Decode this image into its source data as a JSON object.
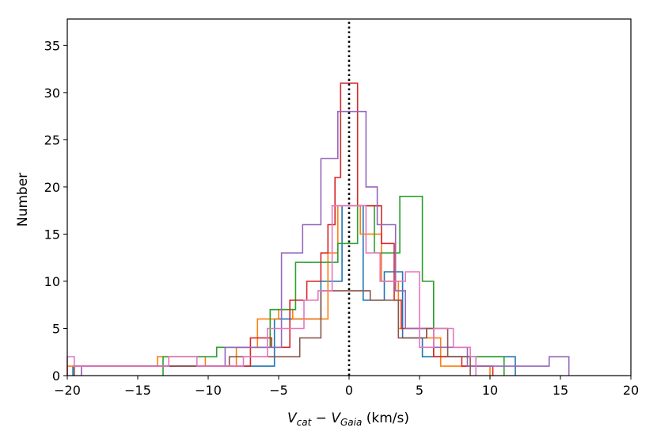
{
  "chart_data": {
    "type": "histogram",
    "title": "",
    "xlabel": {
      "main1": "V",
      "sub1": "cat",
      "op": " − ",
      "main2": "V",
      "sub2": "Gaia",
      "unit": " (km/s)"
    },
    "ylabel": "Number",
    "xlim": [
      -20,
      20
    ],
    "ylim": [
      0,
      37.8
    ],
    "xticks": [
      -20,
      -15,
      -10,
      -5,
      0,
      5,
      10,
      15,
      20
    ],
    "xtick_labels": [
      "−20",
      "−15",
      "−10",
      "−5",
      "0",
      "5",
      "10",
      "15",
      "20"
    ],
    "yticks": [
      0,
      5,
      10,
      15,
      20,
      25,
      30,
      35
    ],
    "ytick_labels": [
      "0",
      "5",
      "10",
      "15",
      "20",
      "25",
      "30",
      "35"
    ],
    "reference_line": {
      "x": 0,
      "style": "dotted",
      "color": "#000000"
    },
    "series": [
      {
        "name": "blue",
        "color": "#1f77b4",
        "points": [
          [
            -19.6,
            0
          ],
          [
            -19.6,
            1
          ],
          [
            -5.3,
            1
          ],
          [
            -5.3,
            6
          ],
          [
            -2.0,
            6
          ],
          [
            -2.0,
            10
          ],
          [
            -0.5,
            10
          ],
          [
            -0.5,
            18
          ],
          [
            1.0,
            18
          ],
          [
            1.0,
            8
          ],
          [
            2.5,
            8
          ],
          [
            2.5,
            11
          ],
          [
            3.8,
            11
          ],
          [
            3.8,
            4
          ],
          [
            5.2,
            4
          ],
          [
            5.2,
            2
          ],
          [
            11.8,
            2
          ],
          [
            11.8,
            0
          ]
        ]
      },
      {
        "name": "orange",
        "color": "#ff7f0e",
        "points": [
          [
            -20.0,
            0
          ],
          [
            -20.0,
            1
          ],
          [
            -13.6,
            1
          ],
          [
            -13.6,
            2
          ],
          [
            -10.2,
            2
          ],
          [
            -10.2,
            1
          ],
          [
            -8.0,
            1
          ],
          [
            -8.0,
            3
          ],
          [
            -6.5,
            3
          ],
          [
            -6.5,
            6
          ],
          [
            -5.0,
            6
          ],
          [
            -5.0,
            7
          ],
          [
            -4.0,
            7
          ],
          [
            -4.0,
            6
          ],
          [
            -1.5,
            6
          ],
          [
            -1.5,
            13
          ],
          [
            -0.8,
            13
          ],
          [
            -0.8,
            18
          ],
          [
            0.8,
            18
          ],
          [
            0.8,
            15
          ],
          [
            2.3,
            15
          ],
          [
            2.3,
            10
          ],
          [
            3.5,
            10
          ],
          [
            3.5,
            5
          ],
          [
            5.5,
            5
          ],
          [
            5.5,
            4
          ],
          [
            6.5,
            4
          ],
          [
            6.5,
            1
          ],
          [
            10.0,
            1
          ],
          [
            10.0,
            0
          ]
        ]
      },
      {
        "name": "green",
        "color": "#2ca02c",
        "points": [
          [
            -13.2,
            0
          ],
          [
            -13.2,
            2
          ],
          [
            -9.4,
            2
          ],
          [
            -9.4,
            3
          ],
          [
            -5.6,
            3
          ],
          [
            -5.6,
            7
          ],
          [
            -3.8,
            7
          ],
          [
            -3.8,
            12
          ],
          [
            -0.8,
            12
          ],
          [
            -0.8,
            14
          ],
          [
            0.6,
            14
          ],
          [
            0.6,
            18
          ],
          [
            1.8,
            18
          ],
          [
            1.8,
            13
          ],
          [
            3.6,
            13
          ],
          [
            3.6,
            19
          ],
          [
            5.2,
            19
          ],
          [
            5.2,
            10
          ],
          [
            6.0,
            10
          ],
          [
            6.0,
            2
          ],
          [
            11.0,
            2
          ],
          [
            11.0,
            0
          ]
        ]
      },
      {
        "name": "red",
        "color": "#d62728",
        "points": [
          [
            -19.0,
            0
          ],
          [
            -19.0,
            1
          ],
          [
            -7.0,
            1
          ],
          [
            -7.0,
            4
          ],
          [
            -5.5,
            4
          ],
          [
            -5.5,
            3
          ],
          [
            -4.2,
            3
          ],
          [
            -4.2,
            8
          ],
          [
            -3.0,
            8
          ],
          [
            -3.0,
            10
          ],
          [
            -2.0,
            10
          ],
          [
            -2.0,
            13
          ],
          [
            -1.5,
            13
          ],
          [
            -1.5,
            16
          ],
          [
            -1.0,
            16
          ],
          [
            -1.0,
            21
          ],
          [
            -0.6,
            21
          ],
          [
            -0.6,
            31
          ],
          [
            0.6,
            31
          ],
          [
            0.6,
            18
          ],
          [
            2.3,
            18
          ],
          [
            2.3,
            14
          ],
          [
            3.2,
            14
          ],
          [
            3.2,
            8
          ],
          [
            3.7,
            8
          ],
          [
            3.7,
            5
          ],
          [
            6.0,
            5
          ],
          [
            6.0,
            2
          ],
          [
            8.0,
            2
          ],
          [
            8.0,
            1
          ],
          [
            10.2,
            1
          ],
          [
            10.2,
            0
          ]
        ]
      },
      {
        "name": "purple",
        "color": "#9467bd",
        "points": [
          [
            -19.0,
            0
          ],
          [
            -19.0,
            1
          ],
          [
            -8.8,
            1
          ],
          [
            -8.8,
            3
          ],
          [
            -4.8,
            3
          ],
          [
            -4.8,
            13
          ],
          [
            -3.3,
            13
          ],
          [
            -3.3,
            16
          ],
          [
            -2.0,
            16
          ],
          [
            -2.0,
            23
          ],
          [
            -0.8,
            23
          ],
          [
            -0.8,
            28
          ],
          [
            1.2,
            28
          ],
          [
            1.2,
            20
          ],
          [
            2.0,
            20
          ],
          [
            2.0,
            16
          ],
          [
            3.3,
            16
          ],
          [
            3.3,
            9
          ],
          [
            4.0,
            9
          ],
          [
            4.0,
            5
          ],
          [
            6.0,
            5
          ],
          [
            6.0,
            3
          ],
          [
            8.4,
            3
          ],
          [
            8.4,
            1
          ],
          [
            14.2,
            1
          ],
          [
            14.2,
            2
          ],
          [
            15.6,
            2
          ],
          [
            15.6,
            0
          ]
        ]
      },
      {
        "name": "brown",
        "color": "#8c564b",
        "points": [
          [
            -19.5,
            0
          ],
          [
            -19.5,
            1
          ],
          [
            -8.5,
            1
          ],
          [
            -8.5,
            2
          ],
          [
            -3.5,
            2
          ],
          [
            -3.5,
            4
          ],
          [
            -2.0,
            4
          ],
          [
            -2.0,
            9
          ],
          [
            1.5,
            9
          ],
          [
            1.5,
            8
          ],
          [
            3.5,
            8
          ],
          [
            3.5,
            4
          ],
          [
            5.5,
            4
          ],
          [
            5.5,
            5
          ],
          [
            7.0,
            5
          ],
          [
            7.0,
            2
          ],
          [
            8.6,
            2
          ],
          [
            8.6,
            0
          ]
        ]
      },
      {
        "name": "pink",
        "color": "#e377c2",
        "points": [
          [
            -20.0,
            0
          ],
          [
            -20.0,
            2
          ],
          [
            -19.5,
            2
          ],
          [
            -19.5,
            1
          ],
          [
            -12.8,
            1
          ],
          [
            -12.8,
            2
          ],
          [
            -10.8,
            2
          ],
          [
            -10.8,
            1
          ],
          [
            -7.5,
            1
          ],
          [
            -7.5,
            2
          ],
          [
            -5.8,
            2
          ],
          [
            -5.8,
            5
          ],
          [
            -3.2,
            5
          ],
          [
            -3.2,
            8
          ],
          [
            -2.2,
            8
          ],
          [
            -2.2,
            9
          ],
          [
            -1.2,
            9
          ],
          [
            -1.2,
            18
          ],
          [
            1.2,
            18
          ],
          [
            1.2,
            13
          ],
          [
            2.2,
            13
          ],
          [
            2.2,
            10
          ],
          [
            4.0,
            10
          ],
          [
            4.0,
            11
          ],
          [
            5.0,
            11
          ],
          [
            5.0,
            3
          ],
          [
            6.0,
            3
          ],
          [
            6.0,
            5
          ],
          [
            7.4,
            5
          ],
          [
            7.4,
            3
          ],
          [
            8.6,
            3
          ],
          [
            8.6,
            2
          ],
          [
            9.0,
            2
          ],
          [
            9.0,
            0
          ]
        ]
      }
    ]
  }
}
